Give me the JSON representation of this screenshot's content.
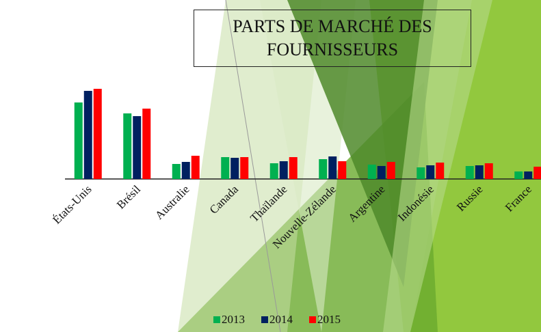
{
  "chart_data": {
    "type": "bar",
    "title": "PARTS DE MARCHÉ DES FOURNISSEURS",
    "categories": [
      "États-Unis",
      "Brésil",
      "Australie",
      "Canada",
      "Thaïlande",
      "Nouvelle-Zélande",
      "Argentine",
      "Indonésie",
      "Russie",
      "France"
    ],
    "series": [
      {
        "name": "2013",
        "color": "#00b050",
        "values": [
          112,
          96,
          22,
          32,
          23,
          29,
          21,
          17,
          19,
          11
        ]
      },
      {
        "name": "2014",
        "color": "#002060",
        "values": [
          129,
          92,
          25,
          31,
          26,
          33,
          19,
          20,
          20,
          11
        ]
      },
      {
        "name": "2015",
        "color": "#ff0000",
        "values": [
          132,
          103,
          34,
          32,
          32,
          26,
          25,
          24,
          23,
          18
        ]
      }
    ]
  }
}
